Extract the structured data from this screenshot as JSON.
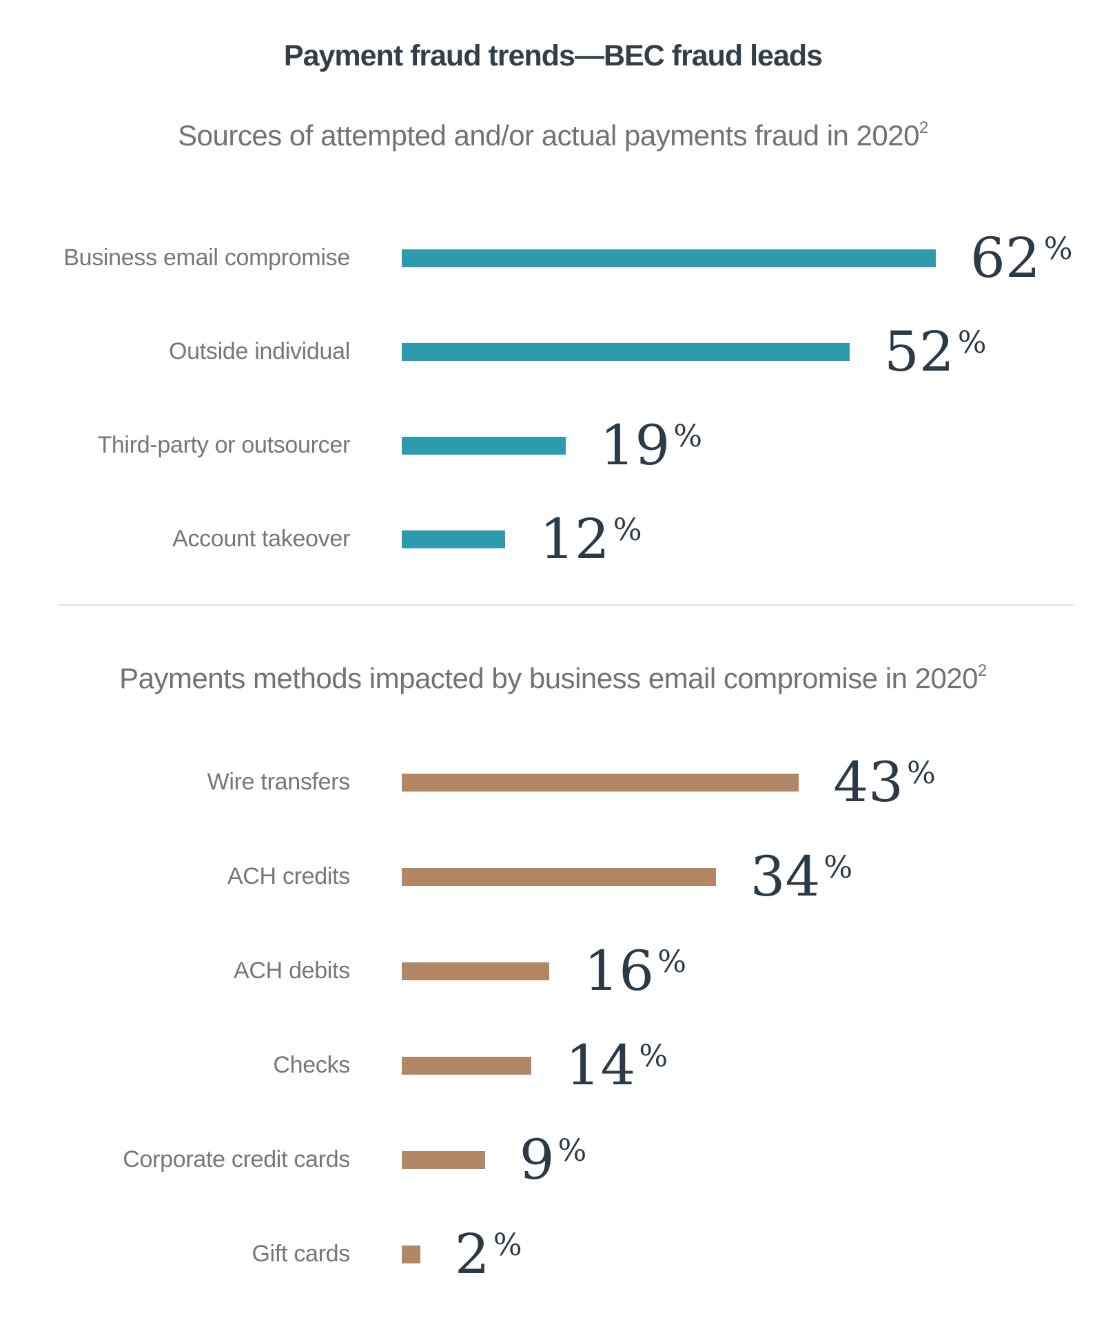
{
  "title": "Payment fraud trends—BEC fraud leads",
  "percent_sign": "%",
  "colors": {
    "teal_bar": "#2E9AAD",
    "brown_bar": "#B18765",
    "title_text": "#333F48",
    "label_text": "#76777A",
    "value_text": "#2B3A46",
    "divider": "#E9E9E9"
  },
  "chart_data": [
    {
      "type": "bar",
      "orientation": "horizontal",
      "title": "Sources of attempted and/or actual payments fraud in 2020",
      "footnote_marker": "2",
      "unit": "%",
      "bar_color": "#2E9AAD",
      "grid": false,
      "legend": false,
      "xlim": [
        0,
        70
      ],
      "categories": [
        "Business email compromise",
        "Outside individual",
        "Third-party or outsourcer",
        "Account takeover"
      ],
      "values": [
        62,
        52,
        19,
        12
      ]
    },
    {
      "type": "bar",
      "orientation": "horizontal",
      "title": "Payments methods impacted by business email compromise in 2020",
      "footnote_marker": "2",
      "unit": "%",
      "bar_color": "#B18765",
      "grid": false,
      "legend": false,
      "xlim": [
        0,
        50
      ],
      "categories": [
        "Wire transfers",
        "ACH credits",
        "ACH debits",
        "Checks",
        "Corporate credit cards",
        "Gift cards"
      ],
      "values": [
        43,
        34,
        16,
        14,
        9,
        2
      ]
    }
  ]
}
